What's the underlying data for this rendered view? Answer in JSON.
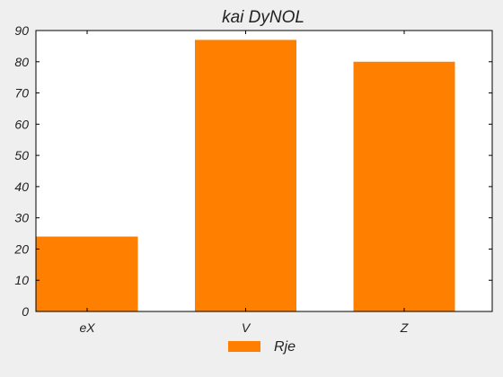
{
  "chart_data": {
    "type": "bar",
    "title": "kai DyNOL",
    "categories": [
      "eX",
      "V",
      "Z"
    ],
    "series": [
      {
        "name": "Rje",
        "values": [
          24,
          87,
          80
        ],
        "color": "#ff8000"
      }
    ],
    "ylim": [
      0,
      90
    ],
    "yticks": [
      0,
      10,
      20,
      30,
      40,
      50,
      60,
      70,
      80,
      90
    ],
    "xlabel": "",
    "ylabel": "",
    "grid": false,
    "legend_position": "bottom-center"
  },
  "colors": {
    "background": "#efefef",
    "plot_background": "#ffffff",
    "axis": "#000000",
    "text": "#222222"
  }
}
